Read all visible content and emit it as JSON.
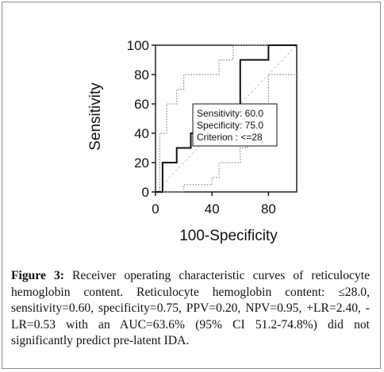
{
  "chart_data": {
    "type": "line",
    "xlabel": "100-Specificity",
    "ylabel": "Sensitivity",
    "xlim": [
      0,
      100
    ],
    "ylim": [
      0,
      100
    ],
    "x_ticks": [
      "0",
      "40",
      "80"
    ],
    "y_ticks": [
      "0",
      "20",
      "40",
      "60",
      "80",
      "100"
    ],
    "grid": false,
    "series": [
      {
        "style": "solid",
        "x": [
          0,
          5,
          5,
          15,
          15,
          25,
          25,
          60,
          60,
          80,
          80,
          100
        ],
        "y": [
          0,
          0,
          20,
          20,
          30,
          30,
          40,
          40,
          90,
          90,
          100,
          100
        ]
      },
      {
        "style": "dotted-upper",
        "x": [
          0,
          3,
          3,
          8,
          8,
          15,
          15,
          20,
          20,
          45,
          45,
          55,
          55,
          100
        ],
        "y": [
          0,
          0,
          40,
          40,
          60,
          60,
          70,
          70,
          80,
          80,
          90,
          90,
          100,
          100
        ]
      },
      {
        "style": "dotted-lower",
        "x": [
          0,
          20,
          20,
          40,
          40,
          45,
          45,
          60,
          60,
          65,
          65,
          70,
          70,
          80,
          80,
          100
        ],
        "y": [
          0,
          0,
          5,
          5,
          10,
          10,
          20,
          20,
          30,
          30,
          50,
          50,
          60,
          60,
          80,
          80
        ]
      },
      {
        "style": "diagonal-dashed",
        "x": [
          0,
          100
        ],
        "y": [
          0,
          100
        ]
      }
    ],
    "annotation": {
      "lines": [
        "Sensitivity: 60.0",
        "Specificity: 75.0",
        "Criterion : <=28"
      ]
    }
  },
  "caption": {
    "label": "Figure 3:",
    "text": "Receiver operating characteristic curves of reticulocyte hemoglobin content. Reticulocyte hemoglobin content: ≤28.0, sensitivity=0.60, specificity=0.75, PPV=0.20, NPV=0.95, +LR=2.40, -LR=0.53 with an AUC=63.6% (95% CI 51.2-74.8%) did not significantly predict pre-latent IDA."
  }
}
